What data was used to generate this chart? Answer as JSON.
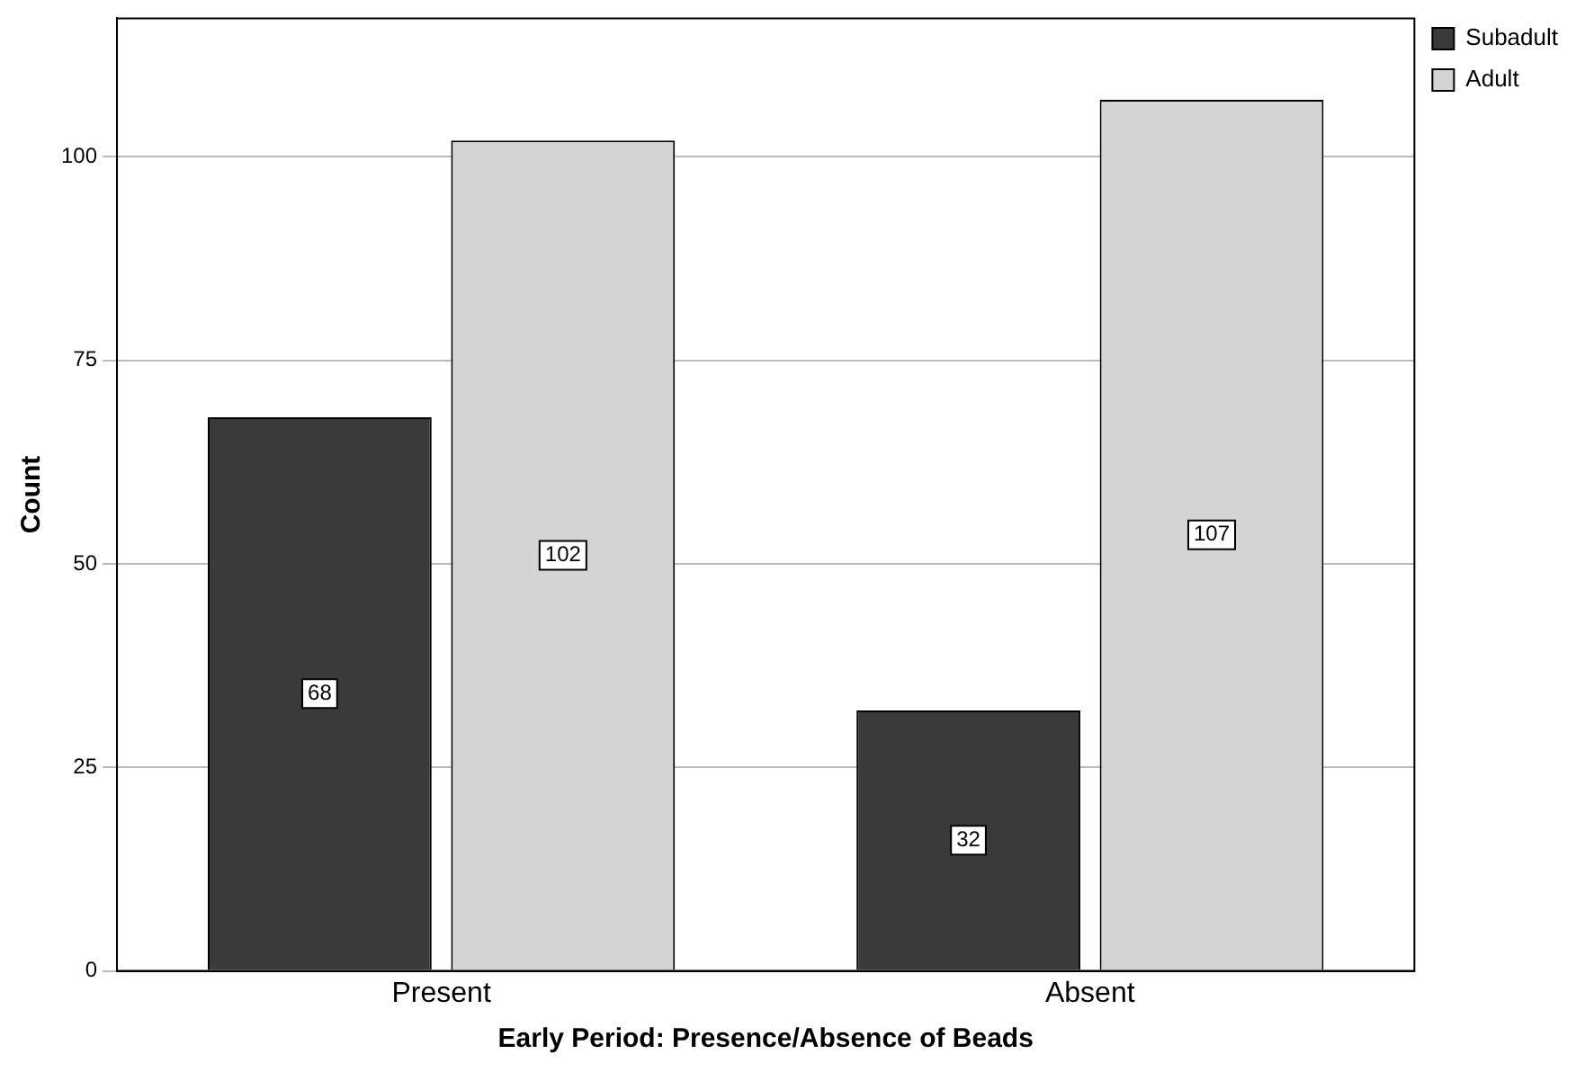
{
  "chart_data": {
    "type": "bar",
    "xlabel": "Early Period: Presence/Absence of Beads",
    "ylabel": "Count",
    "categories": [
      "Present",
      "Absent"
    ],
    "series": [
      {
        "name": "Subadult",
        "color": "#3a3a3a",
        "values": [
          68,
          32
        ]
      },
      {
        "name": "Adult",
        "color": "#d4d4d4",
        "values": [
          102,
          107
        ]
      }
    ],
    "ylim": [
      0,
      117
    ],
    "yticks": [
      0,
      25,
      50,
      75,
      100
    ],
    "grid": "y",
    "legend": "top right",
    "data_labels": true
  }
}
